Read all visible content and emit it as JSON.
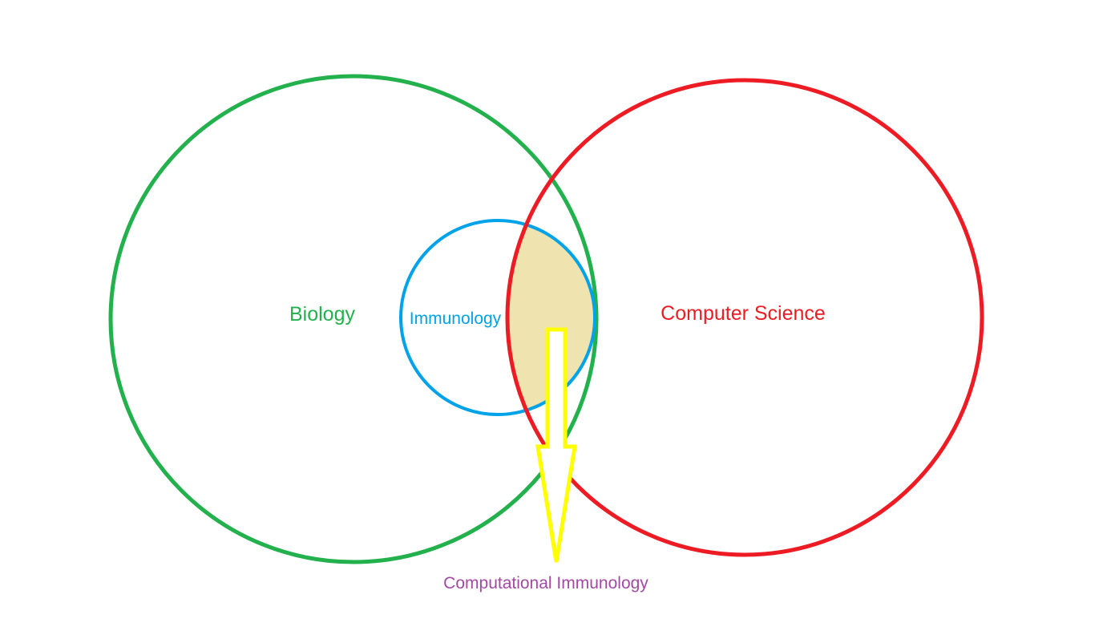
{
  "diagram": {
    "sets": {
      "biology": {
        "label": "Biology",
        "color": "#22b14c"
      },
      "computer_science": {
        "label": "Computer Science",
        "color": "#ed1c24"
      },
      "immunology": {
        "label": "Immunology",
        "color": "#00a2e8"
      }
    },
    "intersection": {
      "label": "Computational Immunology",
      "fill_color": "#efe4b0",
      "label_color": "#a349a4"
    },
    "arrow": {
      "color": "#ffff00",
      "direction": "down"
    }
  }
}
